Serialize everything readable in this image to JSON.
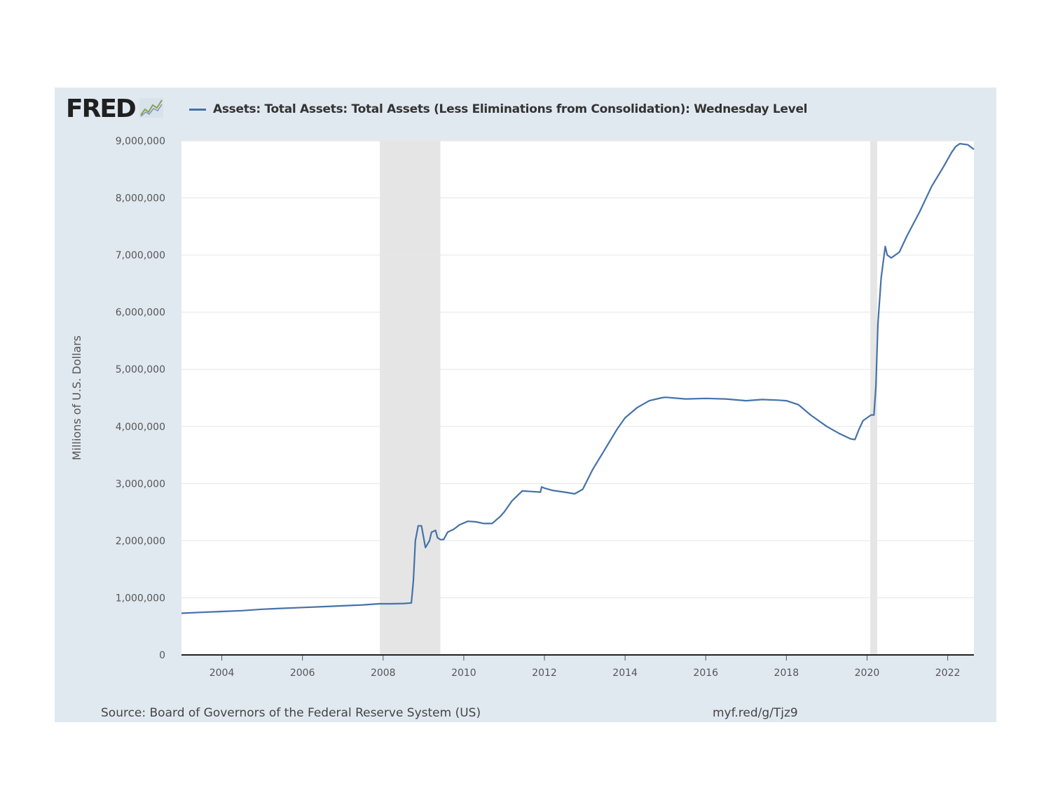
{
  "logo": {
    "text": "FRED",
    "icon": "fred-chart-icon"
  },
  "colors": {
    "line": "#4572a7",
    "panel": "#e1e9f0",
    "recession": "#e5e5e5",
    "grid": "#e6e6e6"
  },
  "footer": {
    "source": "Source: Board of Governors of the Federal Reserve System (US)",
    "url": "myf.red/g/Tjz9"
  },
  "chart_data": {
    "type": "line",
    "title": "",
    "xlabel": "",
    "ylabel": "Millions of U.S. Dollars",
    "xlim": [
      2003.0,
      2022.65
    ],
    "ylim": [
      0,
      9000000
    ],
    "grid": true,
    "legend_position": "top",
    "yticks": [
      0,
      1000000,
      2000000,
      3000000,
      4000000,
      5000000,
      6000000,
      7000000,
      8000000,
      9000000
    ],
    "ytick_labels": [
      "0",
      "1,000,000",
      "2,000,000",
      "3,000,000",
      "4,000,000",
      "5,000,000",
      "6,000,000",
      "7,000,000",
      "8,000,000",
      "9,000,000"
    ],
    "xticks": [
      2004,
      2006,
      2008,
      2010,
      2012,
      2014,
      2016,
      2018,
      2020,
      2022
    ],
    "xtick_labels": [
      "2004",
      "2006",
      "2008",
      "2010",
      "2012",
      "2014",
      "2016",
      "2018",
      "2020",
      "2022"
    ],
    "recessions": [
      [
        2007.92,
        2009.42
      ],
      [
        2020.08,
        2020.25
      ]
    ],
    "series": [
      {
        "name": "Assets: Total Assets: Total Assets (Less Eliminations from Consolidation): Wednesday Level",
        "x": [
          2003.0,
          2003.5,
          2004.0,
          2004.5,
          2005.0,
          2005.5,
          2006.0,
          2006.5,
          2007.0,
          2007.5,
          2007.9,
          2008.2,
          2008.5,
          2008.7,
          2008.75,
          2008.8,
          2008.87,
          2008.95,
          2009.05,
          2009.15,
          2009.2,
          2009.3,
          2009.35,
          2009.42,
          2009.5,
          2009.6,
          2009.75,
          2009.9,
          2010.1,
          2010.3,
          2010.5,
          2010.7,
          2010.9,
          2011.0,
          2011.2,
          2011.45,
          2011.7,
          2011.9,
          2011.93,
          2012.0,
          2012.2,
          2012.5,
          2012.75,
          2012.95,
          2013.2,
          2013.5,
          2013.8,
          2014.0,
          2014.3,
          2014.6,
          2014.9,
          2015.0,
          2015.5,
          2016.0,
          2016.5,
          2017.0,
          2017.4,
          2017.8,
          2018.0,
          2018.3,
          2018.6,
          2019.0,
          2019.3,
          2019.6,
          2019.7,
          2019.8,
          2019.9,
          2020.0,
          2020.1,
          2020.17,
          2020.22,
          2020.27,
          2020.35,
          2020.45,
          2020.5,
          2020.6,
          2020.8,
          2021.0,
          2021.3,
          2021.6,
          2021.9,
          2022.1,
          2022.2,
          2022.3,
          2022.5,
          2022.65
        ],
        "y": [
          730000,
          745000,
          760000,
          775000,
          800000,
          815000,
          830000,
          845000,
          860000,
          875000,
          895000,
          895000,
          900000,
          910000,
          1300000,
          2000000,
          2260000,
          2260000,
          1880000,
          2000000,
          2150000,
          2180000,
          2050000,
          2020000,
          2020000,
          2150000,
          2200000,
          2280000,
          2340000,
          2330000,
          2300000,
          2300000,
          2420000,
          2500000,
          2700000,
          2870000,
          2860000,
          2850000,
          2940000,
          2920000,
          2880000,
          2850000,
          2820000,
          2900000,
          3250000,
          3600000,
          3950000,
          4150000,
          4330000,
          4450000,
          4500000,
          4510000,
          4480000,
          4490000,
          4480000,
          4450000,
          4470000,
          4460000,
          4450000,
          4380000,
          4200000,
          4000000,
          3880000,
          3780000,
          3770000,
          3950000,
          4100000,
          4150000,
          4200000,
          4200000,
          4700000,
          5800000,
          6600000,
          7150000,
          7000000,
          6950000,
          7050000,
          7350000,
          7750000,
          8200000,
          8550000,
          8800000,
          8900000,
          8950000,
          8930000,
          8850000
        ]
      }
    ]
  }
}
